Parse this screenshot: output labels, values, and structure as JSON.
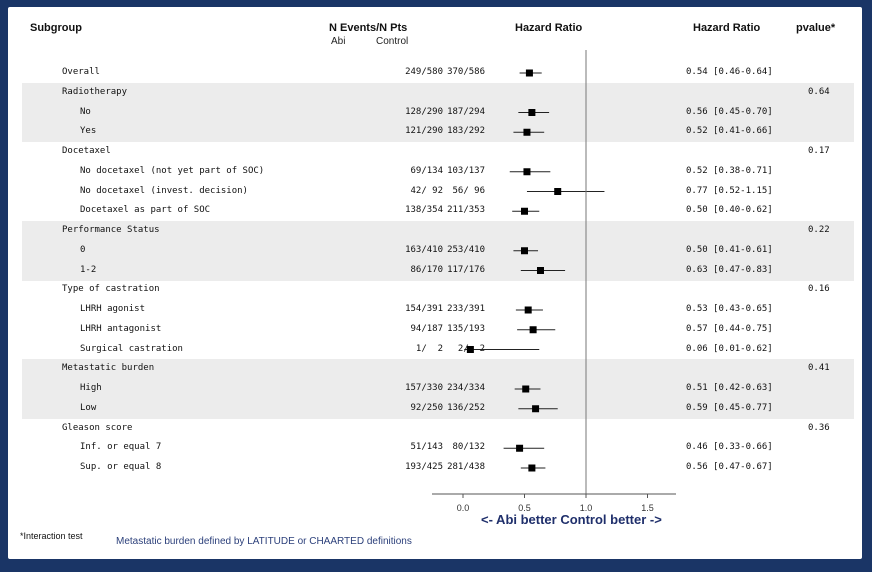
{
  "headers": {
    "subgroup": "Subgroup",
    "n_events": "N Events/N Pts",
    "abi": "Abi",
    "control": "Control",
    "hr_plot": "Hazard Ratio",
    "hr_text": "Hazard Ratio",
    "pvalue": "pvalue*"
  },
  "chart_data": {
    "type": "forest",
    "x_axis": {
      "ticks": [
        "0.0",
        "0.5",
        "1.0",
        "1.5"
      ],
      "tick_values": [
        0,
        0.5,
        1.0,
        1.5
      ],
      "range": [
        0,
        1.75
      ],
      "reference_line": 1.0,
      "label": "<- Abi better  Control better ->"
    },
    "rows": [
      {
        "label": "Overall",
        "indent": 1,
        "abi": "249/580",
        "control": "370/586",
        "hr": 0.54,
        "lo": 0.46,
        "hi": 0.64,
        "hr_text": "0.54 [0.46-0.64]",
        "pvalue": "",
        "shade": false
      },
      {
        "label": "Radiotherapy",
        "indent": 1,
        "abi": "",
        "control": "",
        "hr": null,
        "hr_text": "",
        "pvalue": "0.64",
        "shade": true
      },
      {
        "label": "No",
        "indent": 2,
        "abi": "128/290",
        "control": "187/294",
        "hr": 0.56,
        "lo": 0.45,
        "hi": 0.7,
        "hr_text": "0.56 [0.45-0.70]",
        "pvalue": "",
        "shade": true
      },
      {
        "label": "Yes",
        "indent": 2,
        "abi": "121/290",
        "control": "183/292",
        "hr": 0.52,
        "lo": 0.41,
        "hi": 0.66,
        "hr_text": "0.52 [0.41-0.66]",
        "pvalue": "",
        "shade": true
      },
      {
        "label": "Docetaxel",
        "indent": 1,
        "abi": "",
        "control": "",
        "hr": null,
        "hr_text": "",
        "pvalue": "0.17",
        "shade": false
      },
      {
        "label": "No docetaxel (not yet part of SOC)",
        "indent": 2,
        "abi": "69/134",
        "control": "103/137",
        "hr": 0.52,
        "lo": 0.38,
        "hi": 0.71,
        "hr_text": "0.52 [0.38-0.71]",
        "pvalue": "",
        "shade": false
      },
      {
        "label": "No docetaxel (invest. decision)",
        "indent": 2,
        "abi": "42/ 92",
        "control": "56/ 96",
        "hr": 0.77,
        "lo": 0.52,
        "hi": 1.15,
        "hr_text": "0.77 [0.52-1.15]",
        "pvalue": "",
        "shade": false
      },
      {
        "label": "Docetaxel as part of SOC",
        "indent": 2,
        "abi": "138/354",
        "control": "211/353",
        "hr": 0.5,
        "lo": 0.4,
        "hi": 0.62,
        "hr_text": "0.50 [0.40-0.62]",
        "pvalue": "",
        "shade": false
      },
      {
        "label": "Performance Status",
        "indent": 1,
        "abi": "",
        "control": "",
        "hr": null,
        "hr_text": "",
        "pvalue": "0.22",
        "shade": true
      },
      {
        "label": "0",
        "indent": 2,
        "abi": "163/410",
        "control": "253/410",
        "hr": 0.5,
        "lo": 0.41,
        "hi": 0.61,
        "hr_text": "0.50 [0.41-0.61]",
        "pvalue": "",
        "shade": true
      },
      {
        "label": "1-2",
        "indent": 2,
        "abi": "86/170",
        "control": "117/176",
        "hr": 0.63,
        "lo": 0.47,
        "hi": 0.83,
        "hr_text": "0.63 [0.47-0.83]",
        "pvalue": "",
        "shade": true
      },
      {
        "label": "Type of castration",
        "indent": 1,
        "abi": "",
        "control": "",
        "hr": null,
        "hr_text": "",
        "pvalue": "0.16",
        "shade": false
      },
      {
        "label": "LHRH agonist",
        "indent": 2,
        "abi": "154/391",
        "control": "233/391",
        "hr": 0.53,
        "lo": 0.43,
        "hi": 0.65,
        "hr_text": "0.53 [0.43-0.65]",
        "pvalue": "",
        "shade": false
      },
      {
        "label": "LHRH antagonist",
        "indent": 2,
        "abi": "94/187",
        "control": "135/193",
        "hr": 0.57,
        "lo": 0.44,
        "hi": 0.75,
        "hr_text": "0.57 [0.44-0.75]",
        "pvalue": "",
        "shade": false
      },
      {
        "label": "Surgical castration",
        "indent": 2,
        "abi": "1/  2",
        "control": "2/  2",
        "hr": 0.06,
        "lo": 0.01,
        "hi": 0.62,
        "hr_text": "0.06 [0.01-0.62]",
        "pvalue": "",
        "shade": false
      },
      {
        "label": "Metastatic burden",
        "indent": 1,
        "abi": "",
        "control": "",
        "hr": null,
        "hr_text": "",
        "pvalue": "0.41",
        "shade": true
      },
      {
        "label": "High",
        "indent": 2,
        "abi": "157/330",
        "control": "234/334",
        "hr": 0.51,
        "lo": 0.42,
        "hi": 0.63,
        "hr_text": "0.51 [0.42-0.63]",
        "pvalue": "",
        "shade": true
      },
      {
        "label": "Low",
        "indent": 2,
        "abi": "92/250",
        "control": "136/252",
        "hr": 0.59,
        "lo": 0.45,
        "hi": 0.77,
        "hr_text": "0.59 [0.45-0.77]",
        "pvalue": "",
        "shade": true
      },
      {
        "label": "Gleason score",
        "indent": 1,
        "abi": "",
        "control": "",
        "hr": null,
        "hr_text": "",
        "pvalue": "0.36",
        "shade": false
      },
      {
        "label": "Inf. or equal 7",
        "indent": 2,
        "abi": "51/143",
        "control": "80/132",
        "hr": 0.46,
        "lo": 0.33,
        "hi": 0.66,
        "hr_text": "0.46 [0.33-0.66]",
        "pvalue": "",
        "shade": false
      },
      {
        "label": "Sup. or equal 8",
        "indent": 2,
        "abi": "193/425",
        "control": "281/438",
        "hr": 0.56,
        "lo": 0.47,
        "hi": 0.67,
        "hr_text": "0.56 [0.47-0.67]",
        "pvalue": "",
        "shade": false
      }
    ]
  },
  "footnotes": {
    "interaction": "*Interaction test",
    "definition": "Metastatic burden defined by LATITUDE or CHAARTED definitions"
  },
  "colors": {
    "frame": "#1a3566",
    "shade": "#ececec",
    "marker": "#000000",
    "label_blue": "#1f2f6b"
  }
}
